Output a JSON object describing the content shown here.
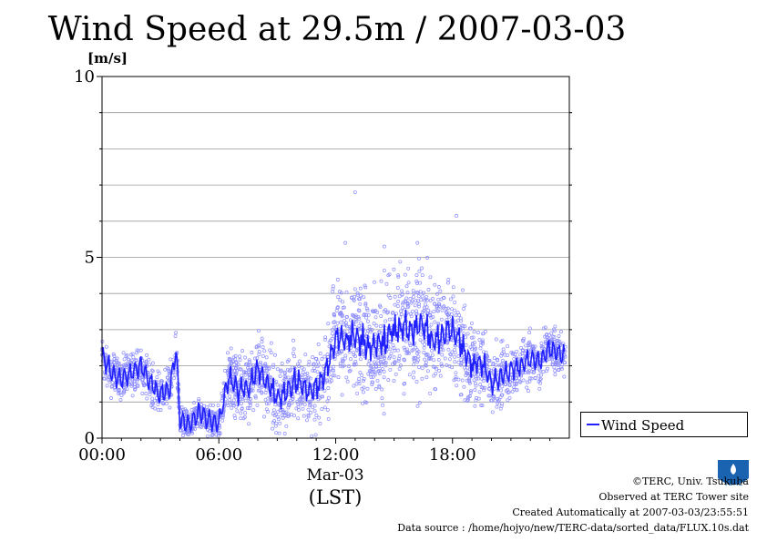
{
  "chart_data": {
    "type": "scatter",
    "title": "Wind Speed at 29.5m / 2007-03-03",
    "ylabel": "[m/s]",
    "xlabel": "(LST)",
    "date_label": "Mar-03",
    "ylim": [
      0,
      10
    ],
    "xlim_hours": [
      0,
      24
    ],
    "y_ticks": [
      "0",
      "5",
      "10"
    ],
    "x_ticks": [
      "00:00",
      "06:00",
      "12:00",
      "18:00"
    ],
    "grid": true,
    "legend_position": "bottom-right",
    "series": [
      {
        "name": "Wind Speed",
        "color": "#2020ff",
        "x_hours": [
          0,
          0.5,
          1,
          1.5,
          2,
          2.5,
          3,
          3.5,
          3.8,
          4,
          4.5,
          5,
          5.5,
          6,
          6.5,
          7,
          7.5,
          8,
          8.5,
          9,
          9.5,
          10,
          10.5,
          11,
          11.5,
          12,
          12.5,
          13,
          13.5,
          14,
          14.5,
          15,
          15.5,
          16,
          16.5,
          17,
          17.5,
          18,
          18.5,
          19,
          19.5,
          20,
          20.5,
          21,
          21.5,
          22,
          22.5,
          23,
          23.5
        ],
        "mean": [
          2.3,
          1.8,
          1.6,
          1.8,
          2.0,
          1.5,
          1.2,
          1.4,
          2.5,
          0.5,
          0.4,
          0.7,
          0.5,
          0.4,
          1.7,
          1.3,
          1.4,
          1.9,
          1.5,
          1.1,
          1.3,
          1.6,
          1.3,
          1.4,
          1.8,
          2.8,
          2.7,
          2.9,
          2.6,
          2.5,
          2.7,
          3.0,
          3.1,
          3.0,
          3.2,
          2.6,
          2.9,
          3.0,
          2.6,
          2.0,
          2.1,
          1.5,
          1.7,
          1.9,
          2.0,
          2.2,
          2.1,
          2.5,
          2.3
        ],
        "spread": [
          0.4,
          0.4,
          0.4,
          0.4,
          0.4,
          0.4,
          0.4,
          0.5,
          0.4,
          0.3,
          0.3,
          0.3,
          0.3,
          0.3,
          0.5,
          0.7,
          0.7,
          0.7,
          0.8,
          0.8,
          0.8,
          0.8,
          0.8,
          0.8,
          0.9,
          1.0,
          1.1,
          1.1,
          1.1,
          1.1,
          1.2,
          1.2,
          1.2,
          1.2,
          1.2,
          1.1,
          1.0,
          1.0,
          1.0,
          0.9,
          0.7,
          0.6,
          0.6,
          0.6,
          0.5,
          0.5,
          0.5,
          0.5,
          0.5
        ],
        "outliers": [
          [
            13.0,
            6.8
          ],
          [
            18.2,
            6.15
          ],
          [
            16.2,
            5.4
          ],
          [
            12.5,
            5.4
          ],
          [
            14.5,
            5.3
          ]
        ]
      }
    ]
  },
  "credits": {
    "copyright": "©TERC, Univ. Tsukuba",
    "observed": "Observed at TERC Tower site",
    "created": "Created Automatically at 2007-03-03/23:55:51",
    "source": "Data source : /home/hojyo/new/TERC-data/sorted_data/FLUX.10s.dat"
  },
  "logo": {
    "text": "TERC",
    "color": "#1a63b0"
  }
}
